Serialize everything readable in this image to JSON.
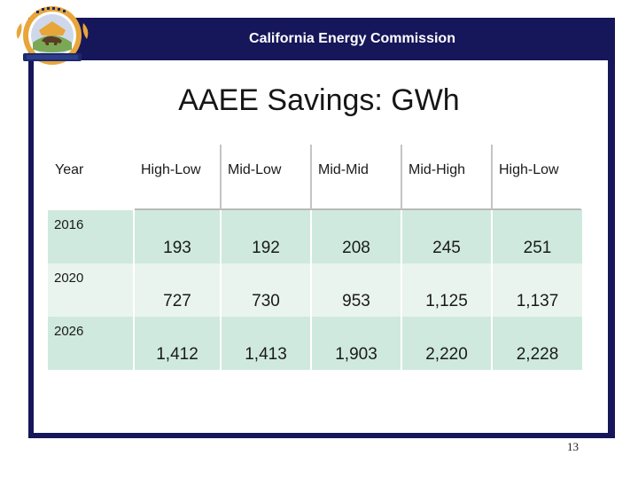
{
  "header": {
    "title": "California Energy Commission"
  },
  "logo": {
    "icon": "cec-seal-icon",
    "ring_text_top": "STATE OF CALIFORNIA",
    "ring_text_bottom": "ENERGY COMMISSION",
    "colors": {
      "gold": "#e8a53a",
      "navy": "#1d2a6b",
      "green": "#7aa855"
    }
  },
  "slide": {
    "title": "AAEE Savings: GWh"
  },
  "table": {
    "headers": [
      "Year",
      "High-Low",
      "Mid-Low",
      "Mid-Mid",
      "Mid-High",
      "High-Low"
    ],
    "rows": [
      {
        "year": "2016",
        "values": [
          "193",
          "192",
          "208",
          "245",
          "251"
        ]
      },
      {
        "year": "2020",
        "values": [
          "727",
          "730",
          "953",
          "1,125",
          "1,137"
        ]
      },
      {
        "year": "2026",
        "values": [
          "1,412",
          "1,413",
          "1,903",
          "2,220",
          "2,228"
        ]
      }
    ]
  },
  "footer": {
    "page_number": "13"
  },
  "colors": {
    "frame": "#16165a",
    "row_dark": "#cfe9df",
    "row_light": "#e9f4ef"
  }
}
